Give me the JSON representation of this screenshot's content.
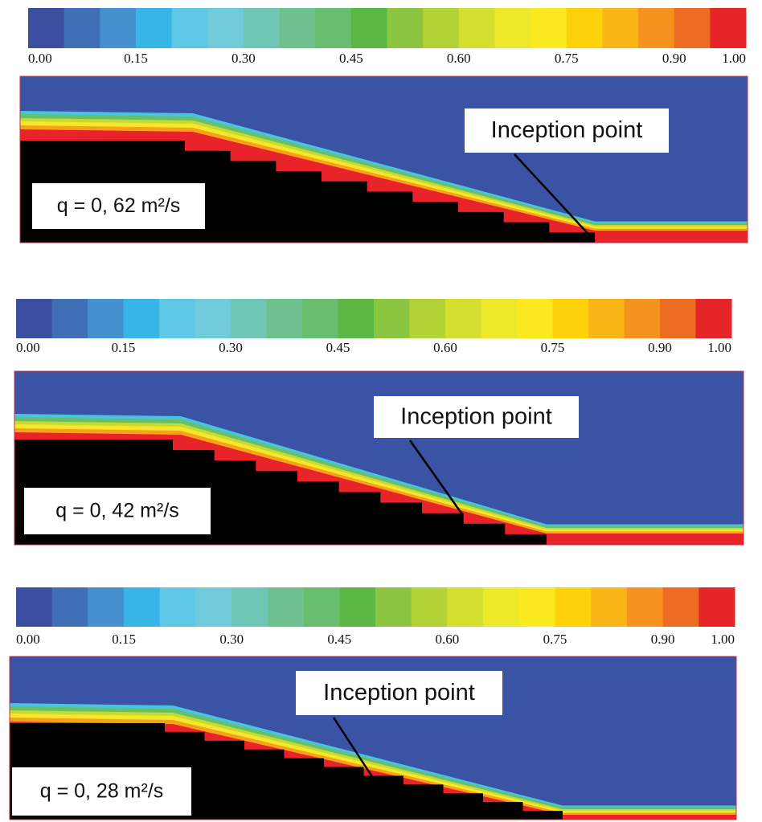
{
  "colorbar_colors": [
    "#3c4ea0",
    "#3f6fb5",
    "#4591d0",
    "#37b5e6",
    "#5ec8e6",
    "#6fcbd9",
    "#70c6b5",
    "#6cc18f",
    "#67be6e",
    "#5bb845",
    "#8cc540",
    "#b2d235",
    "#d4df30",
    "#eee82a",
    "#fbe91f",
    "#fed20b",
    "#fbb516",
    "#f6921e",
    "#ee6b22",
    "#e52527"
  ],
  "panels": [
    {
      "colorbar": {
        "ticks": [
          "0.00",
          "0.15",
          "0.30",
          "0.45",
          "0.60",
          "0.75",
          "0.90",
          "1.00"
        ]
      },
      "annotation": "Inception point",
      "label": "q = 0, 62 m²/s"
    },
    {
      "colorbar": {
        "ticks": [
          "0.00",
          "0.15",
          "0.30",
          "0.45",
          "0.60",
          "0.75",
          "0.90",
          "1.00"
        ]
      },
      "annotation": "Inception point",
      "label": "q = 0, 42 m²/s"
    },
    {
      "colorbar": {
        "ticks": [
          "0.00",
          "0.15",
          "0.30",
          "0.45",
          "0.60",
          "0.75",
          "0.90",
          "1.00"
        ]
      },
      "annotation": "Inception point",
      "label": "q = 0, 28 m²/s"
    }
  ]
}
